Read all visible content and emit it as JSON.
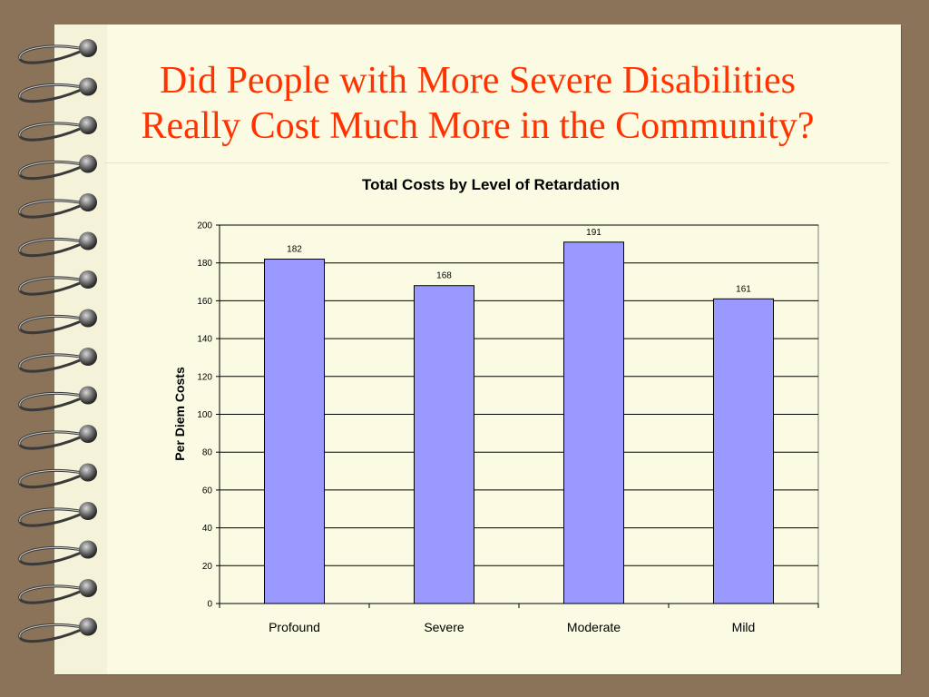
{
  "slide": {
    "title_line1": "Did People with More Severe Disabilities",
    "title_line2": "Really Cost Much More in the Community?",
    "title_color": "#ff3300",
    "background_color": "#8a7359",
    "page_color": "#fbfae3"
  },
  "chart_data": {
    "type": "bar",
    "title": "Total Costs by Level of Retardation",
    "xlabel": "",
    "ylabel": "Per Diem Costs",
    "categories": [
      "Profound",
      "Severe",
      "Moderate",
      "Mild"
    ],
    "values": [
      182,
      168,
      191,
      161
    ],
    "ylim": [
      0,
      200
    ],
    "yticks": [
      0,
      20,
      40,
      60,
      80,
      100,
      120,
      140,
      160,
      180,
      200
    ],
    "grid": true,
    "data_labels": true,
    "bar_color": "#9999ff",
    "bar_edge_color": "#000000"
  }
}
